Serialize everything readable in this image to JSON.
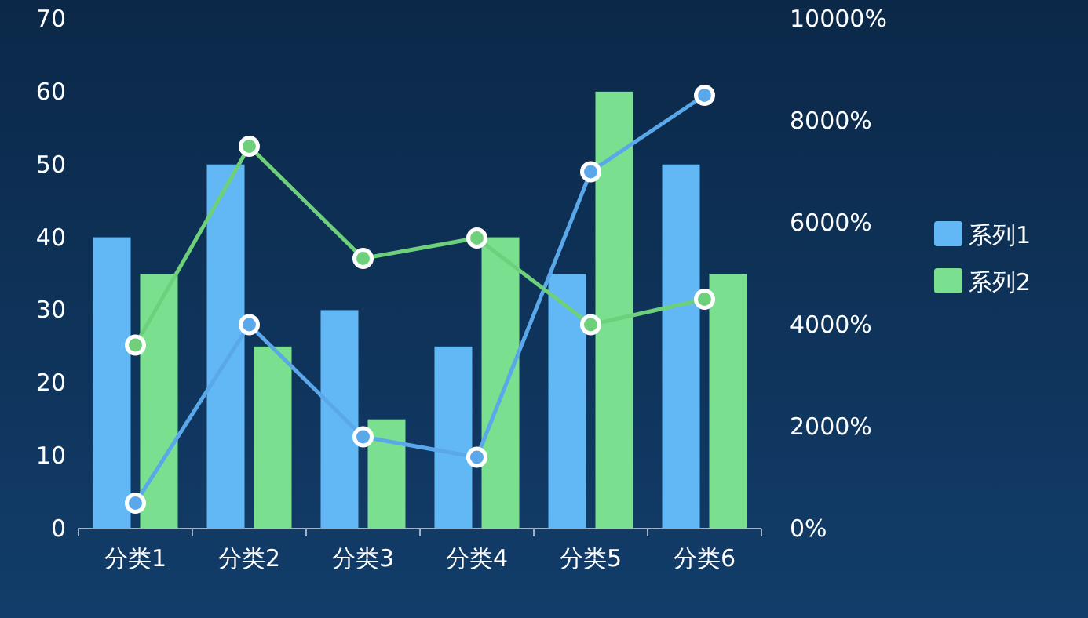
{
  "chart_data": {
    "type": "bar",
    "categories": [
      "分类1",
      "分类2",
      "分类3",
      "分类4",
      "分类5",
      "分类6"
    ],
    "series": [
      {
        "name": "系列1",
        "color": "#62b8f5",
        "values": [
          40,
          50,
          30,
          25,
          35,
          50
        ]
      },
      {
        "name": "系列2",
        "color": "#7ae08f",
        "values": [
          35,
          25,
          15,
          40,
          60,
          35
        ]
      },
      {
        "type": "line",
        "axis": "y2",
        "color": "#5aa8ea",
        "marker": "circle",
        "values": [
          500,
          4000,
          1800,
          1400,
          7000,
          8500
        ]
      },
      {
        "type": "line",
        "axis": "y2",
        "color": "#6fd07c",
        "marker": "circle",
        "values": [
          3600,
          7500,
          5300,
          5700,
          4000,
          4500
        ]
      }
    ],
    "ylim": [
      0,
      70
    ],
    "yticks": [
      0,
      10,
      20,
      30,
      40,
      50,
      60,
      70
    ],
    "y2lim": [
      0,
      10000
    ],
    "y2ticks": [
      {
        "value": 0,
        "label": "0%"
      },
      {
        "value": 2000,
        "label": "2000%"
      },
      {
        "value": 4000,
        "label": "4000%"
      },
      {
        "value": 6000,
        "label": "6000%"
      },
      {
        "value": 8000,
        "label": "8000%"
      },
      {
        "value": 10000,
        "label": "10000%"
      }
    ],
    "grid": false,
    "legend": "right"
  }
}
